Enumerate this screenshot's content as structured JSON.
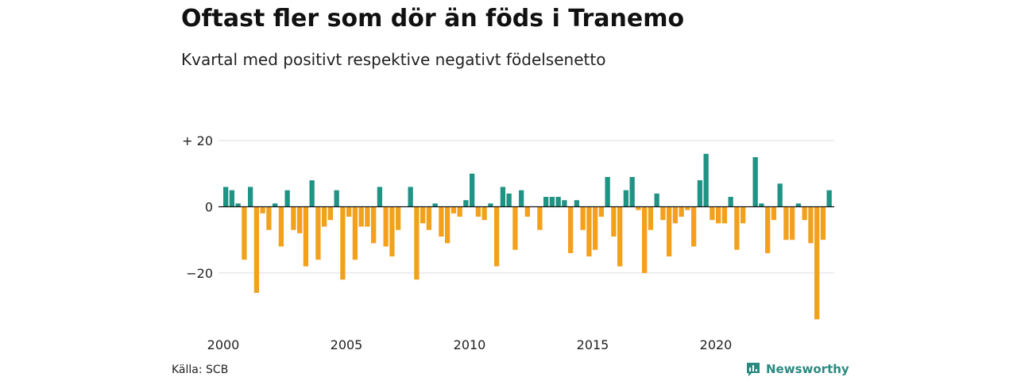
{
  "header": {
    "title": "Oftast fler som dör än föds i Tranemo",
    "subtitle": "Kvartal med positivt respektive negativt födelsenetto"
  },
  "footer": {
    "source": "Källa: SCB",
    "brand": "Newsworthy",
    "brand_icon": "newsworthy-logo-icon"
  },
  "colors": {
    "positive": "#1f9384",
    "negative": "#f3a11c",
    "grid": "#dddddd",
    "axis": "#111111"
  },
  "chart_data": {
    "type": "bar",
    "title": "Oftast fler som dör än föds i Tranemo",
    "subtitle": "Kvartal med positivt respektive negativt födelsenetto",
    "xlabel": "",
    "ylabel": "",
    "x_start": 2000,
    "period": "quarter",
    "x_ticks": [
      "2000",
      "2005",
      "2010",
      "2015",
      "2020"
    ],
    "y_ticks": [
      20,
      0,
      -20
    ],
    "y_tick_labels": [
      "+ 20",
      "0",
      "−20"
    ],
    "ylim": [
      -35,
      20
    ],
    "grid": true,
    "values": [
      6,
      5,
      1,
      -16,
      6,
      -26,
      -2,
      -7,
      1,
      -12,
      5,
      -7,
      -8,
      -18,
      8,
      -16,
      -6,
      -4,
      5,
      -22,
      -3,
      -16,
      -6,
      -6,
      -11,
      6,
      -12,
      -15,
      -7,
      0,
      6,
      -22,
      -5,
      -7,
      1,
      -9,
      -11,
      -2,
      -3,
      2,
      10,
      -3,
      -4,
      1,
      -18,
      6,
      4,
      -13,
      5,
      -3,
      0,
      -7,
      3,
      3,
      3,
      2,
      -14,
      2,
      -7,
      -15,
      -13,
      -3,
      9,
      -9,
      -18,
      5,
      9,
      -1,
      -20,
      -7,
      4,
      -4,
      -15,
      -5,
      -3,
      -1,
      -12,
      8,
      16,
      -4,
      -5,
      -5,
      3,
      -13,
      -5,
      0,
      15,
      1,
      -14,
      -4,
      7,
      -10,
      -10,
      1,
      -4,
      -11,
      -34,
      -10,
      5
    ]
  }
}
